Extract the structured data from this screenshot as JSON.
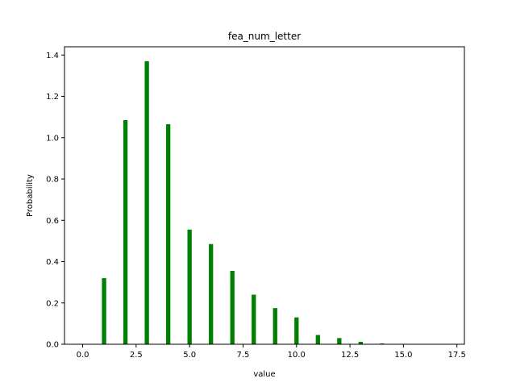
{
  "chart_data": {
    "type": "bar",
    "title": "fea_num_letter",
    "xlabel": "value",
    "ylabel": "Probability",
    "xlim": [
      -0.85,
      17.85
    ],
    "ylim": [
      0,
      1.44
    ],
    "x_ticks": [
      0,
      2.5,
      5,
      7.5,
      10,
      12.5,
      15,
      17.5
    ],
    "x_tick_labels": [
      "0.0",
      "2.5",
      "5.0",
      "7.5",
      "10.0",
      "12.5",
      "15.0",
      "17.5"
    ],
    "y_ticks": [
      0,
      0.2,
      0.4,
      0.6,
      0.8,
      1.0,
      1.2,
      1.4
    ],
    "y_tick_labels": [
      "0.0",
      "0.2",
      "0.4",
      "0.6",
      "0.8",
      "1.0",
      "1.2",
      "1.4"
    ],
    "bar_color": "#008000",
    "grid": false,
    "x": [
      1,
      2,
      3,
      4,
      5,
      6,
      7,
      8,
      9,
      10,
      11,
      12,
      13,
      14
    ],
    "values": [
      0.32,
      1.085,
      1.37,
      1.065,
      0.555,
      0.485,
      0.355,
      0.24,
      0.175,
      0.13,
      0.045,
      0.03,
      0.012,
      0.004
    ]
  }
}
